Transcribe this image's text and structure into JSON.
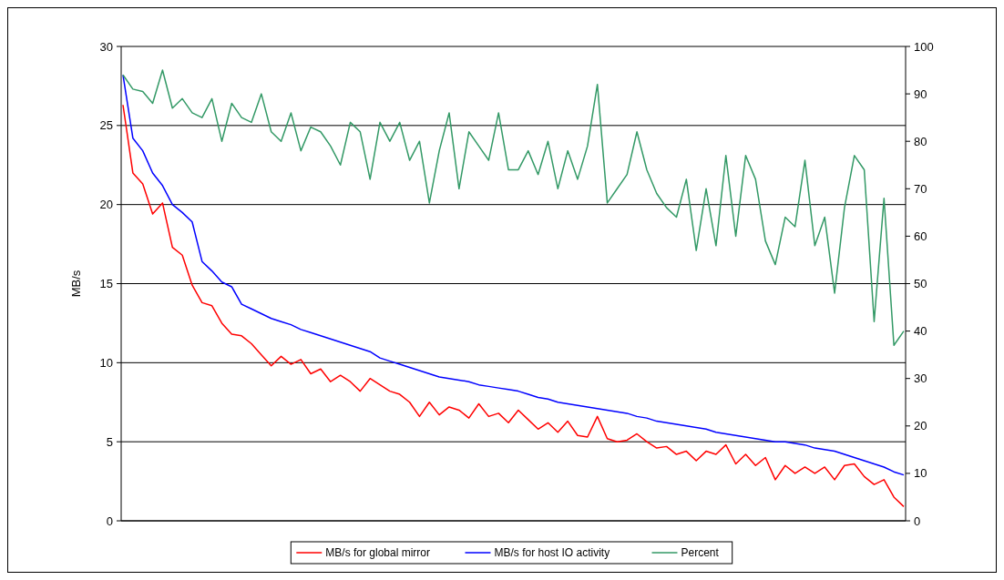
{
  "chart_data": {
    "type": "line",
    "ylabel": "MB/s",
    "categories": [
      null,
      null,
      null,
      null,
      null,
      null,
      null,
      null,
      null,
      null,
      null,
      null,
      null,
      null,
      null,
      null,
      null,
      null,
      null,
      null,
      null,
      null,
      null,
      null,
      null,
      null,
      null,
      null,
      null,
      null,
      null,
      null,
      null,
      null,
      null,
      null,
      null,
      null,
      null,
      null,
      null,
      null,
      null,
      null,
      null,
      null,
      null,
      null,
      null,
      null,
      null,
      null,
      null,
      null,
      null,
      null,
      null,
      null,
      null,
      null,
      null,
      null,
      null,
      null,
      null,
      null,
      null,
      null,
      null,
      null,
      null,
      null,
      null,
      null,
      null,
      null,
      null,
      null,
      null,
      null
    ],
    "series": [
      {
        "name": "MB/s for global mirror",
        "color": "#ff0000",
        "values": [
          26.3,
          22.0,
          21.3,
          19.4,
          20.1,
          17.3,
          16.8,
          14.9,
          13.8,
          13.6,
          12.5,
          11.8,
          11.7,
          11.2,
          10.5,
          9.8,
          10.4,
          9.9,
          10.2,
          9.3,
          9.6,
          8.8,
          9.2,
          8.8,
          8.2,
          9.0,
          8.6,
          8.2,
          8.0,
          7.5,
          6.6,
          7.5,
          6.7,
          7.2,
          7.0,
          6.5,
          7.4,
          6.6,
          6.8,
          6.2,
          7.0,
          6.4,
          5.8,
          6.2,
          5.6,
          6.3,
          5.4,
          5.3,
          6.6,
          5.2,
          5.0,
          5.1,
          5.5,
          5.0,
          4.6,
          4.7,
          4.2,
          4.4,
          3.8,
          4.4,
          4.2,
          4.8,
          3.6,
          4.2,
          3.5,
          4.0,
          2.6,
          3.5,
          3.0,
          3.4,
          3.0,
          3.4,
          2.6,
          3.5,
          3.6,
          2.8,
          2.3,
          2.6,
          1.5,
          0.9
        ]
      },
      {
        "name": "MB/s for host IO activity",
        "color": "#0000ff",
        "values": [
          28.2,
          24.2,
          23.4,
          22.0,
          21.2,
          20.0,
          19.5,
          18.9,
          16.4,
          15.8,
          15.1,
          14.8,
          13.7,
          13.4,
          13.1,
          12.8,
          12.6,
          12.4,
          12.1,
          11.9,
          11.7,
          11.5,
          11.3,
          11.1,
          10.9,
          10.7,
          10.3,
          10.1,
          9.9,
          9.7,
          9.5,
          9.3,
          9.1,
          9.0,
          8.9,
          8.8,
          8.6,
          8.5,
          8.4,
          8.3,
          8.2,
          8.0,
          7.8,
          7.7,
          7.5,
          7.4,
          7.3,
          7.2,
          7.1,
          7.0,
          6.9,
          6.8,
          6.6,
          6.5,
          6.3,
          6.2,
          6.1,
          6.0,
          5.9,
          5.8,
          5.6,
          5.5,
          5.4,
          5.3,
          5.2,
          5.1,
          5.0,
          5.0,
          4.9,
          4.8,
          4.6,
          4.5,
          4.4,
          4.2,
          4.0,
          3.8,
          3.6,
          3.4,
          3.1,
          2.9
        ]
      },
      {
        "name": "Percent",
        "color": "#339966",
        "axis": "y2",
        "values": [
          94,
          91,
          90.5,
          88,
          95,
          87,
          89,
          86,
          85,
          89,
          80,
          88,
          85,
          84,
          90,
          82,
          80,
          86,
          78,
          83,
          82,
          79,
          75,
          84,
          82,
          72,
          84,
          80,
          84,
          76,
          80,
          67,
          78,
          86,
          70,
          82,
          79,
          76,
          86,
          74,
          74,
          78,
          73,
          80,
          70,
          78,
          72,
          79,
          92,
          67,
          70,
          73,
          82,
          74,
          69,
          66,
          64,
          72,
          57,
          70,
          58,
          77,
          60,
          77,
          72,
          59,
          54,
          64,
          62,
          76,
          58,
          64,
          48,
          66,
          77,
          74,
          42,
          68,
          37,
          40
        ]
      }
    ],
    "ylim": [
      0,
      30
    ],
    "yticks": [
      0,
      5,
      10,
      15,
      20,
      25,
      30
    ],
    "y2lim": [
      0,
      100
    ],
    "y2ticks": [
      0,
      10,
      20,
      30,
      40,
      50,
      60,
      70,
      80,
      90,
      100
    ],
    "grid": "y",
    "legend": "bottom"
  }
}
